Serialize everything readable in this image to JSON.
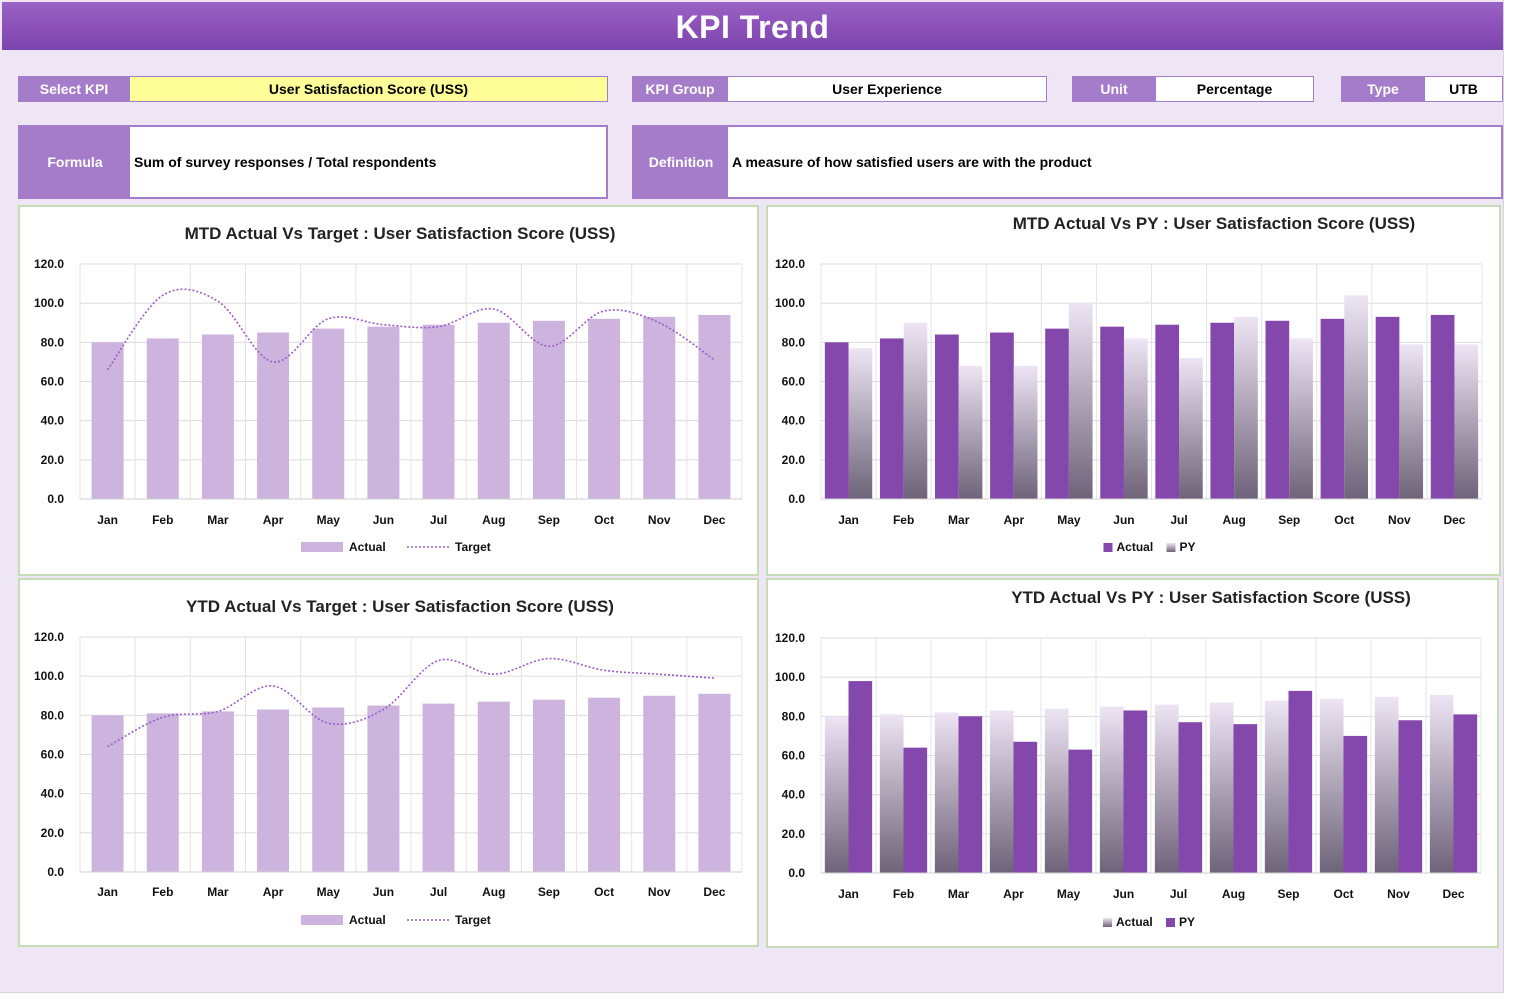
{
  "title": "KPI Trend",
  "selectors": {
    "select_kpi": {
      "label": "Select KPI",
      "value": "User Satisfaction Score (USS)"
    },
    "kpi_group": {
      "label": "KPI Group",
      "value": "User Experience"
    },
    "unit": {
      "label": "Unit",
      "value": "Percentage"
    },
    "type": {
      "label": "Type",
      "value": "UTB"
    }
  },
  "formula": {
    "label": "Formula",
    "value": "Sum of survey responses / Total respondents"
  },
  "definition": {
    "label": "Definition",
    "value": "A measure of how satisfied users are with the product"
  },
  "colors": {
    "header": "#8a50b8",
    "label_bg": "#a47cc9",
    "highlight": "#ffff99",
    "light_bar": "#cdb4df",
    "dark_bar": "#8447ab",
    "target_line": "#9a5cc6",
    "panel_border": "#c5ddb5"
  },
  "chart_data": [
    {
      "id": "mtd_target",
      "type": "bar",
      "title": "MTD Actual Vs Target : User Satisfaction Score (USS)",
      "categories": [
        "Jan",
        "Feb",
        "Mar",
        "Apr",
        "May",
        "Jun",
        "Jul",
        "Aug",
        "Sep",
        "Oct",
        "Nov",
        "Dec"
      ],
      "series": [
        {
          "name": "Actual",
          "kind": "bar",
          "values": [
            80,
            82,
            84,
            85,
            87,
            88,
            89,
            90,
            91,
            92,
            93,
            94
          ]
        },
        {
          "name": "Target",
          "kind": "line",
          "values": [
            66,
            104,
            101,
            70,
            92,
            89,
            88,
            97,
            78,
            96,
            90,
            71
          ]
        }
      ],
      "ylim": [
        0,
        120
      ],
      "yticks": [
        "0.0",
        "20.0",
        "40.0",
        "60.0",
        "80.0",
        "100.0",
        "120.0"
      ],
      "grid": true,
      "legend": "bottom"
    },
    {
      "id": "mtd_py",
      "type": "bar",
      "title": "MTD Actual Vs PY : User Satisfaction Score (USS)",
      "categories": [
        "Jan",
        "Feb",
        "Mar",
        "Apr",
        "May",
        "Jun",
        "Jul",
        "Aug",
        "Sep",
        "Oct",
        "Nov",
        "Dec"
      ],
      "series": [
        {
          "name": "Actual",
          "kind": "bar",
          "style": "dark",
          "values": [
            80,
            82,
            84,
            85,
            87,
            88,
            89,
            90,
            91,
            92,
            93,
            94
          ]
        },
        {
          "name": "PY",
          "kind": "bar",
          "style": "gradient",
          "values": [
            77,
            90,
            68,
            68,
            100,
            82,
            72,
            93,
            82,
            104,
            79,
            79
          ]
        }
      ],
      "ylim": [
        0,
        120
      ],
      "yticks": [
        "0.0",
        "20.0",
        "40.0",
        "60.0",
        "80.0",
        "100.0",
        "120.0"
      ],
      "grid": true,
      "legend": "bottom"
    },
    {
      "id": "ytd_target",
      "type": "bar",
      "title": "YTD Actual Vs Target : User Satisfaction Score (USS)",
      "categories": [
        "Jan",
        "Feb",
        "Mar",
        "Apr",
        "May",
        "Jun",
        "Jul",
        "Aug",
        "Sep",
        "Oct",
        "Nov",
        "Dec"
      ],
      "series": [
        {
          "name": "Actual",
          "kind": "bar",
          "values": [
            80,
            81,
            82,
            83,
            84,
            85,
            86,
            87,
            88,
            89,
            90,
            91
          ]
        },
        {
          "name": "Target",
          "kind": "line",
          "values": [
            64,
            79,
            82,
            95,
            76,
            83,
            108,
            101,
            109,
            103,
            101,
            99
          ]
        }
      ],
      "ylim": [
        0,
        120
      ],
      "yticks": [
        "0.0",
        "20.0",
        "40.0",
        "60.0",
        "80.0",
        "100.0",
        "120.0"
      ],
      "grid": true,
      "legend": "bottom"
    },
    {
      "id": "ytd_py",
      "type": "bar",
      "title": "YTD Actual Vs PY : User Satisfaction Score (USS)",
      "categories": [
        "Jan",
        "Feb",
        "Mar",
        "Apr",
        "May",
        "Jun",
        "Jul",
        "Aug",
        "Sep",
        "Oct",
        "Nov",
        "Dec"
      ],
      "series": [
        {
          "name": "Actual",
          "kind": "bar",
          "style": "gradient",
          "values": [
            80,
            81,
            82,
            83,
            84,
            85,
            86,
            87,
            88,
            89,
            90,
            91
          ]
        },
        {
          "name": "PY",
          "kind": "bar",
          "style": "dark",
          "values": [
            98,
            64,
            80,
            67,
            63,
            83,
            77,
            76,
            93,
            70,
            78,
            81
          ]
        }
      ],
      "ylim": [
        0,
        120
      ],
      "yticks": [
        "0.0",
        "20.0",
        "40.0",
        "60.0",
        "80.0",
        "100.0",
        "120.0"
      ],
      "grid": true,
      "legend": "bottom"
    }
  ]
}
